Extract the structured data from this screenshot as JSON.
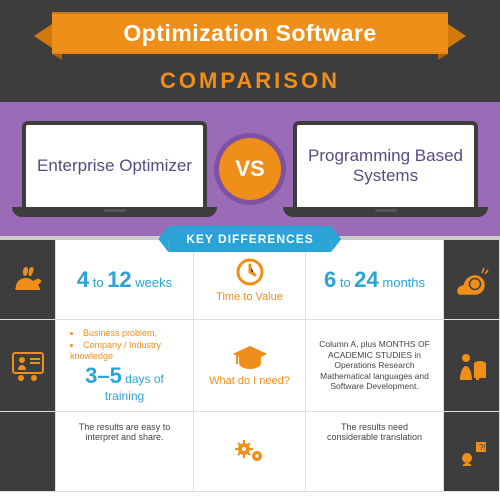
{
  "colors": {
    "header_bg": "#3d3d3d",
    "accent_orange": "#ef8f1a",
    "accent_orange_dark": "#d17a0c",
    "purple_bg": "#9a6cb8",
    "purple_ring": "#7e52a0",
    "laptop_text": "#5a4a82",
    "key_blue": "#2aa3d6",
    "divider": "#cccccc",
    "grid_border": "#dddddd",
    "side_col_bg": "#3d3d3d",
    "white": "#ffffff",
    "text_gray": "#444444"
  },
  "header": {
    "banner_title": "Optimization Software",
    "subtitle": "COMPARISON"
  },
  "vs": {
    "left_label": "Enterprise Optimizer",
    "right_label": "Programming Based Systems",
    "badge": "VS"
  },
  "key_label": "KEY DIFFERENCES",
  "rows": [
    {
      "left_icon": "rabbit",
      "left_text_html": "<span class='n'>4</span> to <span class='n'>12</span> weeks",
      "mid_icon": "clock",
      "mid_label": "Time to Value",
      "right_text_html": "<span class='n'>6</span> to <span class='n'>24</span> months",
      "right_icon": "snail"
    },
    {
      "left_icon": "training",
      "left_bullets": [
        "Business problem,",
        "Company / Industry knowledge"
      ],
      "left_sub_html": "<span class='n'>3–5</span> days of training",
      "mid_icon": "grad",
      "mid_label": "What do I need?",
      "right_text": "Column A, plus MONTHS OF ACADEMIC STUDIES in Operations Research Mathematical languages and Software Development.",
      "right_icon": "studying"
    },
    {
      "left_icon": "blank",
      "left_text": "The results are easy to interpret and share.",
      "mid_icon": "gears",
      "mid_label": "",
      "right_text": "The results need considerable translation",
      "right_icon": "confused"
    }
  ]
}
